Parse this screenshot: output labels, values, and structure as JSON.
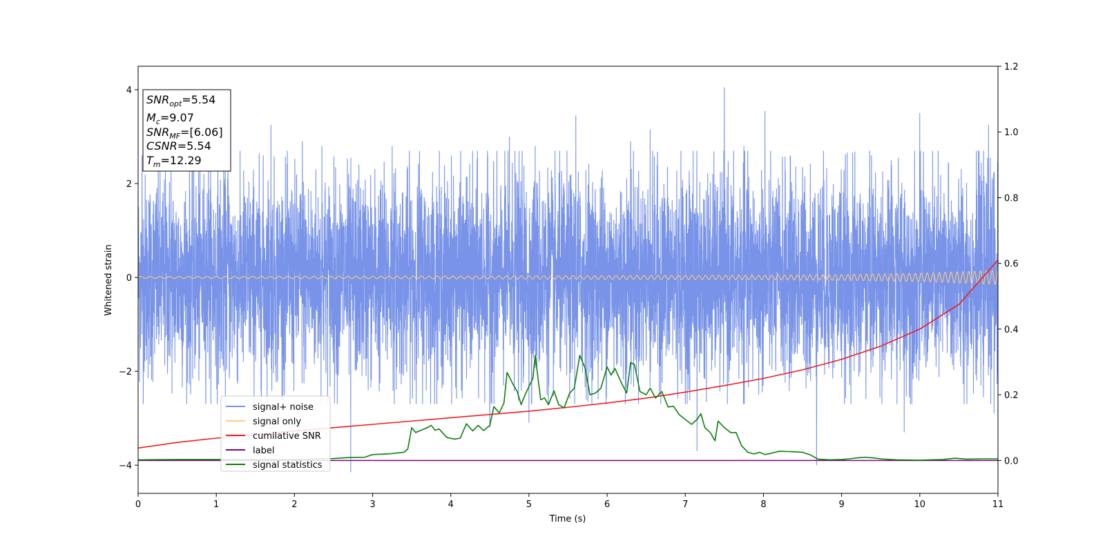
{
  "chart_data": {
    "type": "line",
    "xlabel": "Time (s)",
    "ylabel": "Whitened strain",
    "xlim": [
      0,
      11
    ],
    "ylim_left": [
      -4.6,
      4.5
    ],
    "ylim_right": [
      -0.1,
      1.2
    ],
    "x_ticks": [
      "0",
      "1",
      "2",
      "3",
      "4",
      "5",
      "6",
      "7",
      "8",
      "9",
      "10",
      "11"
    ],
    "y_ticks_left": [
      "4",
      "2",
      "0",
      "−2",
      "−4"
    ],
    "y_ticks_left_values": [
      4,
      2,
      0,
      -2,
      -4
    ],
    "y_ticks_right": [
      "1.2",
      "1.0",
      "0.8",
      "0.6",
      "0.4",
      "0.2",
      "0.0"
    ],
    "y_ticks_right_values": [
      1.2,
      1.0,
      0.8,
      0.6,
      0.4,
      0.2,
      0.0
    ],
    "grid": false,
    "legend_placement": "lower-left",
    "annotation": {
      "lines": [
        {
          "base": "SNR",
          "sub": "opt",
          "value": "=5.54"
        },
        {
          "base": "M",
          "sub": "c",
          "value": "=9.07"
        },
        {
          "base": "SNR",
          "sub": "MF",
          "value": "=[6.06]"
        },
        {
          "base": "CSNR",
          "sub": "",
          "value": "=5.54"
        },
        {
          "base": "T",
          "sub": "m",
          "value": "=12.29"
        }
      ]
    },
    "series": [
      {
        "name": "signal+ noise",
        "axis": "left",
        "color": "#7893e8",
        "description_kind": "noise",
        "amplitude_typical": 1.5,
        "spikes": [
          [
            0.05,
            2.6
          ],
          [
            0.42,
            2.3
          ],
          [
            0.9,
            2.6
          ],
          [
            1.15,
            2.8
          ],
          [
            1.7,
            3.25
          ],
          [
            2.1,
            2.9
          ],
          [
            2.35,
            2.8
          ],
          [
            2.72,
            -4.15
          ],
          [
            3.25,
            2.8
          ],
          [
            3.6,
            2.7
          ],
          [
            4.5,
            -3.2
          ],
          [
            4.75,
            3.0
          ],
          [
            4.82,
            2.7
          ],
          [
            5.0,
            -3.1
          ],
          [
            5.08,
            2.8
          ],
          [
            5.6,
            3.45
          ],
          [
            6.3,
            2.9
          ],
          [
            6.55,
            3.15
          ],
          [
            7.1,
            2.7
          ],
          [
            7.15,
            -3.7
          ],
          [
            7.5,
            4.05
          ],
          [
            7.75,
            2.8
          ],
          [
            8.02,
            3.55
          ],
          [
            8.68,
            -4.0
          ],
          [
            9.8,
            -3.3
          ],
          [
            10.0,
            3.5
          ],
          [
            10.88,
            3.25
          ],
          [
            10.95,
            -2.9
          ]
        ]
      },
      {
        "name": "signal only",
        "axis": "left",
        "color": "#ffcc80",
        "points": [
          [
            0,
            0.02
          ],
          [
            4,
            0.03
          ],
          [
            6,
            0.04
          ],
          [
            8,
            0.05
          ],
          [
            9,
            0.06
          ],
          [
            10,
            0.09
          ],
          [
            10.5,
            0.12
          ],
          [
            11,
            0.15
          ]
        ]
      },
      {
        "name": "cumilative SNR",
        "axis": "right",
        "color": "#ee1c1c",
        "points": [
          [
            0,
            0.038
          ],
          [
            0.5,
            0.055
          ],
          [
            1,
            0.068
          ],
          [
            1.5,
            0.078
          ],
          [
            2,
            0.09
          ],
          [
            2.5,
            0.1
          ],
          [
            3,
            0.11
          ],
          [
            3.5,
            0.12
          ],
          [
            4,
            0.13
          ],
          [
            4.5,
            0.14
          ],
          [
            5,
            0.15
          ],
          [
            5.5,
            0.162
          ],
          [
            6,
            0.175
          ],
          [
            6.5,
            0.19
          ],
          [
            7,
            0.208
          ],
          [
            7.5,
            0.228
          ],
          [
            8,
            0.25
          ],
          [
            8.5,
            0.276
          ],
          [
            9,
            0.308
          ],
          [
            9.5,
            0.348
          ],
          [
            10,
            0.4
          ],
          [
            10.5,
            0.475
          ],
          [
            11,
            0.61
          ]
        ]
      },
      {
        "name": "label",
        "axis": "right",
        "color": "#800080",
        "points": [
          [
            0,
            0.0
          ],
          [
            11,
            0.0
          ]
        ]
      },
      {
        "name": "signal statistics",
        "axis": "right",
        "color": "#0a7d0a",
        "points": [
          [
            0,
            0.002
          ],
          [
            0.5,
            0.003
          ],
          [
            1.0,
            0.003
          ],
          [
            1.5,
            0.003
          ],
          [
            2.0,
            0.003
          ],
          [
            2.5,
            0.006
          ],
          [
            2.7,
            0.009
          ],
          [
            2.9,
            0.01
          ],
          [
            3.0,
            0.018
          ],
          [
            3.2,
            0.02
          ],
          [
            3.4,
            0.025
          ],
          [
            3.45,
            0.035
          ],
          [
            3.5,
            0.1
          ],
          [
            3.55,
            0.085
          ],
          [
            3.65,
            0.095
          ],
          [
            3.7,
            0.1
          ],
          [
            3.75,
            0.107
          ],
          [
            3.8,
            0.092
          ],
          [
            3.85,
            0.096
          ],
          [
            3.95,
            0.07
          ],
          [
            4.05,
            0.065
          ],
          [
            4.12,
            0.068
          ],
          [
            4.2,
            0.112
          ],
          [
            4.28,
            0.09
          ],
          [
            4.35,
            0.107
          ],
          [
            4.42,
            0.091
          ],
          [
            4.5,
            0.107
          ],
          [
            4.55,
            0.164
          ],
          [
            4.62,
            0.145
          ],
          [
            4.68,
            0.175
          ],
          [
            4.72,
            0.268
          ],
          [
            4.8,
            0.23
          ],
          [
            4.85,
            0.21
          ],
          [
            4.9,
            0.17
          ],
          [
            4.95,
            0.2
          ],
          [
            5.05,
            0.25
          ],
          [
            5.08,
            0.32
          ],
          [
            5.15,
            0.185
          ],
          [
            5.2,
            0.19
          ],
          [
            5.25,
            0.17
          ],
          [
            5.32,
            0.212
          ],
          [
            5.38,
            0.17
          ],
          [
            5.45,
            0.16
          ],
          [
            5.52,
            0.205
          ],
          [
            5.58,
            0.22
          ],
          [
            5.65,
            0.32
          ],
          [
            5.72,
            0.28
          ],
          [
            5.78,
            0.2
          ],
          [
            5.85,
            0.205
          ],
          [
            5.92,
            0.22
          ],
          [
            6.0,
            0.285
          ],
          [
            6.05,
            0.26
          ],
          [
            6.1,
            0.28
          ],
          [
            6.18,
            0.238
          ],
          [
            6.25,
            0.205
          ],
          [
            6.3,
            0.298
          ],
          [
            6.35,
            0.292
          ],
          [
            6.42,
            0.21
          ],
          [
            6.5,
            0.2
          ],
          [
            6.55,
            0.22
          ],
          [
            6.62,
            0.19
          ],
          [
            6.7,
            0.21
          ],
          [
            6.78,
            0.163
          ],
          [
            6.85,
            0.165
          ],
          [
            6.92,
            0.14
          ],
          [
            7.0,
            0.125
          ],
          [
            7.08,
            0.11
          ],
          [
            7.15,
            0.125
          ],
          [
            7.2,
            0.142
          ],
          [
            7.25,
            0.1
          ],
          [
            7.32,
            0.085
          ],
          [
            7.38,
            0.06
          ],
          [
            7.42,
            0.12
          ],
          [
            7.5,
            0.1
          ],
          [
            7.58,
            0.085
          ],
          [
            7.65,
            0.085
          ],
          [
            7.72,
            0.045
          ],
          [
            7.8,
            0.025
          ],
          [
            7.88,
            0.02
          ],
          [
            7.95,
            0.025
          ],
          [
            8.02,
            0.018
          ],
          [
            8.1,
            0.022
          ],
          [
            8.2,
            0.028
          ],
          [
            8.35,
            0.027
          ],
          [
            8.5,
            0.025
          ],
          [
            8.6,
            0.017
          ],
          [
            8.7,
            0.004
          ],
          [
            8.85,
            0.002
          ],
          [
            9.0,
            0.003
          ],
          [
            9.1,
            0.005
          ],
          [
            9.2,
            0.008
          ],
          [
            9.3,
            0.01
          ],
          [
            9.4,
            0.008
          ],
          [
            9.5,
            0.005
          ],
          [
            9.7,
            0.002
          ],
          [
            10.0,
            0.001
          ],
          [
            10.3,
            0.003
          ],
          [
            10.45,
            0.007
          ],
          [
            10.6,
            0.004
          ],
          [
            10.8,
            0.005
          ],
          [
            11.0,
            0.005
          ]
        ]
      }
    ]
  }
}
